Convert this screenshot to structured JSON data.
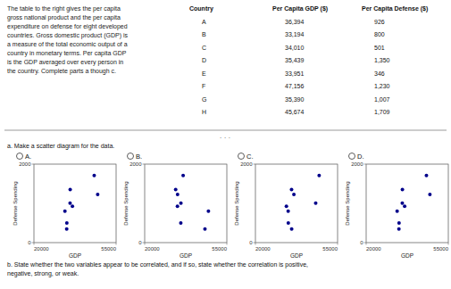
{
  "chart_data": [
    {
      "type": "table",
      "subtitle": "The table to the right gives the per capita\ngross national product and the per capita\nexpenditure on defense for eight developed\ncountries. Gross domestic product (GDP) is\na measure of the total economic output of a\ncountry in monetary terms. Per capita GDP\nis the GDP averaged over every person in\nthe country. Complete parts a though c.",
      "xlabel": "Country",
      "categories": [
        "A",
        "B",
        "C",
        "D",
        "E",
        "F",
        "G",
        "H"
      ],
      "series": [
        {
          "name": "Per Capita GDP ($)",
          "values": [
            36394,
            33194,
            34010,
            35439,
            33951,
            47156,
            35390,
            45674
          ],
          "value_labels": [
            "36,394",
            "33,194",
            "34,010",
            "35,439",
            "33,951",
            "47,156",
            "35,390",
            "45,674"
          ]
        },
        {
          "name": "Per Capita Defense ($)",
          "values": [
            926,
            800,
            501,
            1350,
            346,
            1230,
            1007,
            1709
          ],
          "value_labels": [
            "926",
            "800",
            "501",
            "1,350",
            "346",
            "1,230",
            "1,007",
            "1,709"
          ]
        }
      ],
      "annotations": [
        "· · ·",
        "a. Make a scatter diagram for the data.",
        "b. State whether the two variables appear to be correlated, and if so, state whether the correlation is positive,\nnegative, strong, or weak."
      ]
    },
    {
      "type": "scatter",
      "title": "A.",
      "xlabel": "GDP",
      "ylabel": "Defense Spending",
      "color": "#00008B",
      "x": [
        36394,
        33194,
        34010,
        35439,
        33951,
        47156,
        35390,
        45674
      ],
      "values": [
        926,
        800,
        501,
        1350,
        346,
        1230,
        1007,
        1709
      ],
      "xlim": [
        20000,
        55000
      ],
      "ylim": [
        0,
        2000
      ],
      "xticks": [
        20000,
        55000
      ],
      "yticks": [
        0,
        2000
      ],
      "grid": true
    },
    {
      "type": "scatter",
      "title": "B.",
      "xlabel": "GDP",
      "ylabel": "Defense Spending",
      "color": "#00008B",
      "x": [
        36394,
        33194,
        34010,
        35439,
        33951,
        47156,
        35390,
        45674
      ],
      "values": [
        1709,
        1350,
        1230,
        1007,
        926,
        800,
        501,
        346
      ],
      "xlim": [
        20000,
        55000
      ],
      "ylim": [
        0,
        2000
      ],
      "xticks": [
        20000,
        55000
      ],
      "yticks": [
        0,
        2000
      ],
      "grid": true
    },
    {
      "type": "scatter",
      "title": "C.",
      "xlabel": "GDP",
      "ylabel": "Defense Spending",
      "color": "#00008B",
      "x": [
        33194,
        33951,
        34010,
        35390,
        35439,
        36394,
        45674,
        47156
      ],
      "values": [
        926,
        800,
        501,
        1350,
        346,
        1230,
        1007,
        1709
      ],
      "xlim": [
        20000,
        55000
      ],
      "ylim": [
        0,
        2000
      ],
      "xticks": [
        20000,
        55000
      ],
      "yticks": [
        0,
        2000
      ],
      "grid": true
    },
    {
      "type": "scatter",
      "title": "D.",
      "xlabel": "GDP",
      "ylabel": "Defense Spending",
      "color": "#00008B",
      "x": [
        36394,
        33194,
        34010,
        35439,
        33951,
        47156,
        35390,
        45674
      ],
      "values": [
        926,
        800,
        501,
        1350,
        346,
        1230,
        1007,
        1709
      ],
      "xlim": [
        20000,
        55000
      ],
      "ylim": [
        0,
        2000
      ],
      "xticks": [
        20000,
        55000
      ],
      "yticks": [
        0,
        2000
      ],
      "grid": true
    }
  ]
}
